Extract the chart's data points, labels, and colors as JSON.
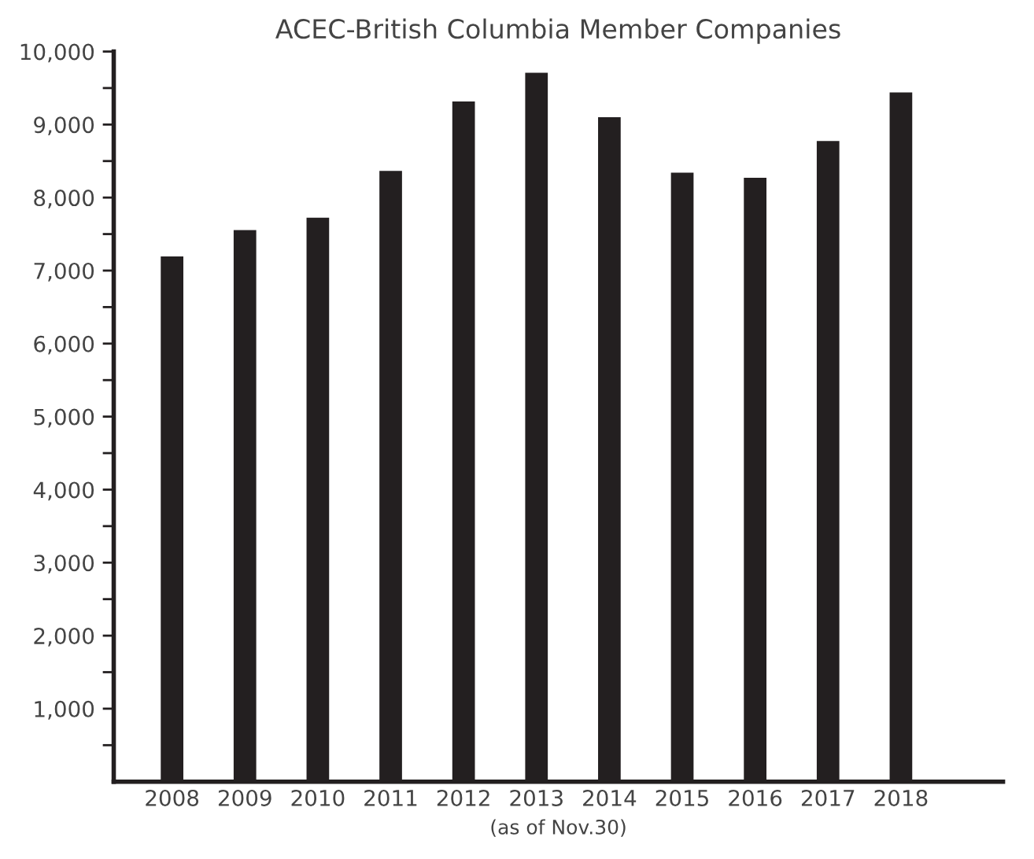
{
  "chart_data": {
    "type": "bar",
    "title": "ACEC-British Columbia Member Companies",
    "xlabel": "(as of Nov.30)",
    "categories": [
      "2008",
      "2009",
      "2010",
      "2011",
      "2012",
      "2013",
      "2014",
      "2015",
      "2016",
      "2017",
      "2018"
    ],
    "values": [
      7210,
      7570,
      7740,
      8380,
      9330,
      9725,
      9115,
      8355,
      8285,
      8790,
      9455
    ],
    "color": "#231f20",
    "ylim": [
      0,
      10000
    ],
    "yticks": [
      {
        "value": 500,
        "label": null
      },
      {
        "value": 1000,
        "label": "1,000"
      },
      {
        "value": 1500,
        "label": null
      },
      {
        "value": 2000,
        "label": "2,000"
      },
      {
        "value": 2500,
        "label": null
      },
      {
        "value": 3000,
        "label": "3,000"
      },
      {
        "value": 3500,
        "label": null
      },
      {
        "value": 4000,
        "label": "4,000"
      },
      {
        "value": 4500,
        "label": null
      },
      {
        "value": 5000,
        "label": "5,000"
      },
      {
        "value": 5500,
        "label": null
      },
      {
        "value": 6000,
        "label": "6,000"
      },
      {
        "value": 6500,
        "label": null
      },
      {
        "value": 7000,
        "label": "7,000"
      },
      {
        "value": 7500,
        "label": null
      },
      {
        "value": 8000,
        "label": "8,000"
      },
      {
        "value": 8500,
        "label": null
      },
      {
        "value": 9000,
        "label": "9,000"
      },
      {
        "value": 9500,
        "label": null
      },
      {
        "value": 10000,
        "label": "10,000"
      }
    ],
    "grid": false,
    "legend": false
  }
}
